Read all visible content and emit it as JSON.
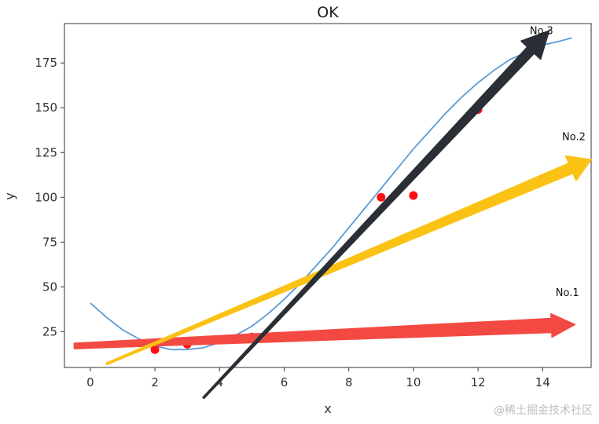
{
  "chart_data": {
    "type": "scatter",
    "title": "OK",
    "xlabel": "x",
    "ylabel": "y",
    "xlim": [
      -0.8,
      15.5
    ],
    "ylim": [
      5,
      197
    ],
    "grid": false,
    "x_ticks": [
      0,
      2,
      4,
      6,
      8,
      10,
      12,
      14
    ],
    "y_ticks": [
      25,
      50,
      75,
      100,
      125,
      150,
      175
    ],
    "points": [
      {
        "x": 2,
        "y": 15
      },
      {
        "x": 3,
        "y": 18
      },
      {
        "x": 5,
        "y": 22
      },
      {
        "x": 9,
        "y": 100
      },
      {
        "x": 10,
        "y": 101
      },
      {
        "x": 12,
        "y": 149
      }
    ],
    "point_color": "#ff1010",
    "fit_curve": {
      "color": "#5b9bd5",
      "x": [
        0,
        0.5,
        1,
        1.5,
        2,
        2.5,
        3,
        3.5,
        4,
        4.5,
        5,
        5.5,
        6,
        6.5,
        7,
        7.5,
        8,
        8.5,
        9,
        9.5,
        10,
        10.5,
        11,
        11.5,
        12,
        12.5,
        13,
        13.5,
        14,
        14.5,
        14.9
      ],
      "y": [
        41,
        33,
        26,
        21,
        17,
        15,
        15,
        16,
        19,
        23,
        28,
        35,
        43,
        52,
        62,
        72,
        83,
        94,
        105,
        116,
        127,
        137,
        147,
        156,
        164,
        171,
        177,
        181,
        185,
        187,
        189
      ]
    },
    "arrows": [
      {
        "label": "No.1",
        "color": "#f24a43",
        "from": [
          -0.5,
          17
        ],
        "to": [
          15,
          29
        ],
        "label_at": [
          14.4,
          45
        ]
      },
      {
        "label": "No.2",
        "color": "#fbc216",
        "from": [
          0.5,
          7
        ],
        "to": [
          15.5,
          121
        ],
        "label_at": [
          14.6,
          132
        ]
      },
      {
        "label": "No.3",
        "color": "#2a2f36",
        "from": [
          3.5,
          -12
        ],
        "to": [
          14.2,
          193
        ],
        "label_at": [
          13.6,
          191
        ]
      }
    ]
  },
  "watermark": "@稀土掘金技术社区"
}
